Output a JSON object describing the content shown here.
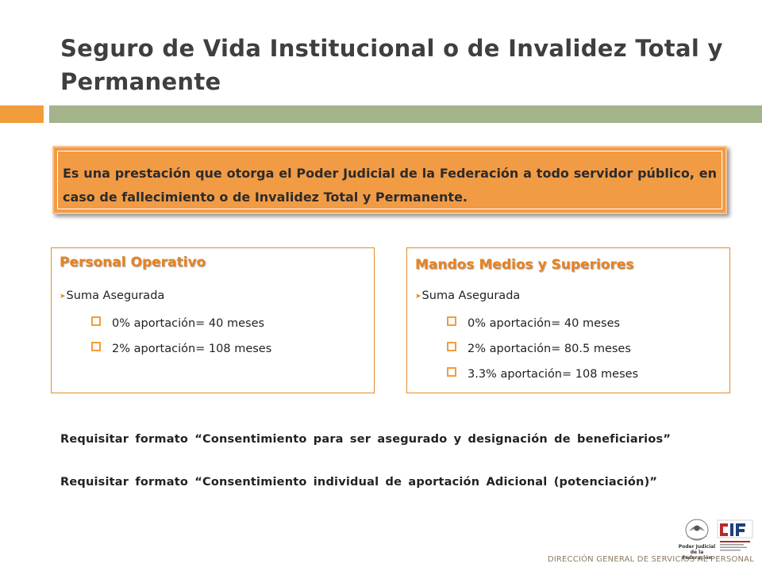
{
  "header": {
    "title": "Seguro de Vida Institucional o de Invalidez Total y Permanente"
  },
  "intro": {
    "text": "Es una prestación que otorga el Poder Judicial de la Federación a todo servidor público, en caso de fallecimiento o de Invalidez Total y Permanente."
  },
  "panels": {
    "operativo": {
      "title": "Personal Operativo",
      "subtitle": "Suma Asegurada",
      "items": [
        "0% aportación= 40 meses",
        "2% aportación= 108 meses"
      ]
    },
    "mandos": {
      "title": "Mandos Medios y Superiores",
      "subtitle": "Suma Asegurada",
      "items": [
        "0% aportación= 40 meses",
        "2% aportación= 80.5 meses",
        "3.3% aportación= 108 meses"
      ]
    }
  },
  "requirements": [
    "Requisitar formato “Consentimiento para ser asegurado y designación de beneficiarios”",
    "Requisitar formato “Consentimiento individual de aportación Adicional (potenciación)”"
  ],
  "footer": {
    "label": "DIRECCIÓN GENERAL DE SERVICIOS AL PERSONAL",
    "pjf_logo_text": "Poder Judicial de la Federación",
    "cjf_logo_text": "CJF"
  },
  "colors": {
    "accent_orange": "#f39c3c",
    "accent_green": "#a3b38a",
    "panel_title": "#e8821f"
  },
  "icons": {
    "sub_item": "arrow-right-icon",
    "bullet": "square-bullet-icon"
  }
}
